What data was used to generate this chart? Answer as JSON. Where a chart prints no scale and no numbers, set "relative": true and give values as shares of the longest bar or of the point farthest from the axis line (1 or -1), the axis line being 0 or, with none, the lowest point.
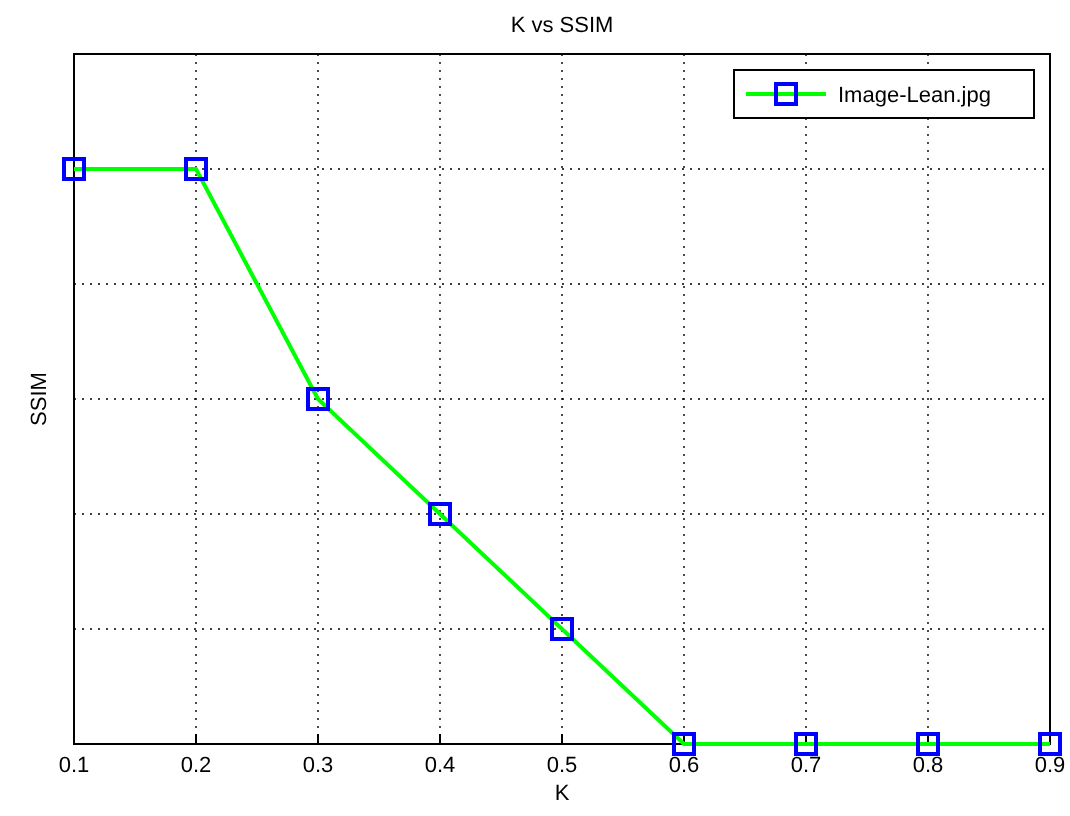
{
  "chart_data": {
    "type": "line",
    "title": "K vs SSIM",
    "xlabel": "K",
    "ylabel": "SSIM",
    "relative": true,
    "x": [
      0.1,
      0.2,
      0.3,
      0.4,
      0.5,
      0.6,
      0.7,
      0.8,
      0.9
    ],
    "series": [
      {
        "name": "Image-Lean.jpg",
        "color": "#00ff00",
        "values": [
          1,
          1,
          0.6,
          0.4,
          0.2,
          0,
          0,
          0,
          0
        ]
      }
    ],
    "xlim": [
      0.1,
      0.9
    ],
    "xticks": [
      0.1,
      0.2,
      0.3,
      0.4,
      0.5,
      0.6,
      0.7,
      0.8,
      0.9
    ],
    "grid": true,
    "legend": "top right",
    "marker": "square",
    "line_style": "solid"
  }
}
